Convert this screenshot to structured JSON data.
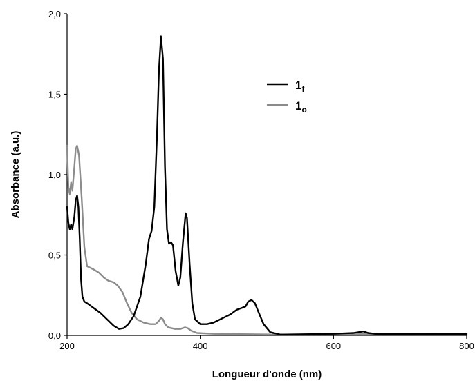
{
  "chart_data": {
    "type": "line",
    "xlabel": "Longueur d'onde (nm)",
    "ylabel": "Absorbance (a.u.)",
    "xlim": [
      200,
      800
    ],
    "ylim": [
      0,
      2
    ],
    "x_ticks": [
      200,
      400,
      600,
      800
    ],
    "x_tick_labels": [
      "200",
      "400",
      "600",
      "800"
    ],
    "y_ticks": [
      0,
      0.5,
      1,
      1.5,
      2
    ],
    "y_tick_labels": [
      "0,0",
      "0,5",
      "1,0",
      "1,5",
      "2,0"
    ],
    "grid": false,
    "legend_position": "top-right",
    "series": [
      {
        "name": "1",
        "name_subscript": "f",
        "color": "#000000",
        "points": [
          [
            200,
            0.8
          ],
          [
            202,
            0.7
          ],
          [
            204,
            0.66
          ],
          [
            206,
            0.69
          ],
          [
            208,
            0.66
          ],
          [
            211,
            0.74
          ],
          [
            213,
            0.84
          ],
          [
            215,
            0.87
          ],
          [
            217,
            0.8
          ],
          [
            219,
            0.6
          ],
          [
            221,
            0.35
          ],
          [
            223,
            0.24
          ],
          [
            226,
            0.21
          ],
          [
            230,
            0.2
          ],
          [
            240,
            0.17
          ],
          [
            250,
            0.14
          ],
          [
            260,
            0.1
          ],
          [
            270,
            0.06
          ],
          [
            278,
            0.04
          ],
          [
            285,
            0.045
          ],
          [
            292,
            0.07
          ],
          [
            300,
            0.12
          ],
          [
            310,
            0.24
          ],
          [
            318,
            0.44
          ],
          [
            323,
            0.6
          ],
          [
            327,
            0.65
          ],
          [
            331,
            0.8
          ],
          [
            335,
            1.25
          ],
          [
            338,
            1.65
          ],
          [
            341,
            1.86
          ],
          [
            344,
            1.72
          ],
          [
            347,
            1.05
          ],
          [
            350,
            0.66
          ],
          [
            353,
            0.57
          ],
          [
            356,
            0.58
          ],
          [
            359,
            0.56
          ],
          [
            363,
            0.4
          ],
          [
            367,
            0.31
          ],
          [
            370,
            0.36
          ],
          [
            374,
            0.58
          ],
          [
            378,
            0.76
          ],
          [
            380,
            0.73
          ],
          [
            384,
            0.44
          ],
          [
            388,
            0.2
          ],
          [
            392,
            0.1
          ],
          [
            400,
            0.07
          ],
          [
            410,
            0.07
          ],
          [
            420,
            0.08
          ],
          [
            430,
            0.1
          ],
          [
            445,
            0.13
          ],
          [
            455,
            0.16
          ],
          [
            462,
            0.17
          ],
          [
            468,
            0.18
          ],
          [
            472,
            0.21
          ],
          [
            477,
            0.22
          ],
          [
            482,
            0.2
          ],
          [
            488,
            0.14
          ],
          [
            495,
            0.07
          ],
          [
            505,
            0.02
          ],
          [
            520,
            0.005
          ],
          [
            600,
            0.01
          ],
          [
            630,
            0.015
          ],
          [
            645,
            0.025
          ],
          [
            652,
            0.015
          ],
          [
            665,
            0.008
          ],
          [
            800,
            0.008
          ]
        ]
      },
      {
        "name": "1",
        "name_subscript": "o",
        "color": "#8c8c8c",
        "points": [
          [
            200,
            1.18
          ],
          [
            202,
            0.92
          ],
          [
            204,
            0.88
          ],
          [
            206,
            0.95
          ],
          [
            208,
            0.9
          ],
          [
            211,
            1.05
          ],
          [
            213,
            1.16
          ],
          [
            215,
            1.18
          ],
          [
            218,
            1.12
          ],
          [
            222,
            0.85
          ],
          [
            226,
            0.55
          ],
          [
            230,
            0.43
          ],
          [
            235,
            0.42
          ],
          [
            240,
            0.41
          ],
          [
            248,
            0.39
          ],
          [
            255,
            0.36
          ],
          [
            262,
            0.34
          ],
          [
            270,
            0.33
          ],
          [
            276,
            0.31
          ],
          [
            283,
            0.27
          ],
          [
            290,
            0.2
          ],
          [
            297,
            0.14
          ],
          [
            305,
            0.1
          ],
          [
            315,
            0.08
          ],
          [
            325,
            0.07
          ],
          [
            333,
            0.07
          ],
          [
            338,
            0.09
          ],
          [
            341,
            0.11
          ],
          [
            344,
            0.1
          ],
          [
            347,
            0.07
          ],
          [
            352,
            0.05
          ],
          [
            362,
            0.04
          ],
          [
            370,
            0.04
          ],
          [
            377,
            0.05
          ],
          [
            381,
            0.045
          ],
          [
            386,
            0.03
          ],
          [
            395,
            0.015
          ],
          [
            420,
            0.01
          ],
          [
            520,
            0.005
          ],
          [
            800,
            0.01
          ]
        ]
      }
    ]
  }
}
